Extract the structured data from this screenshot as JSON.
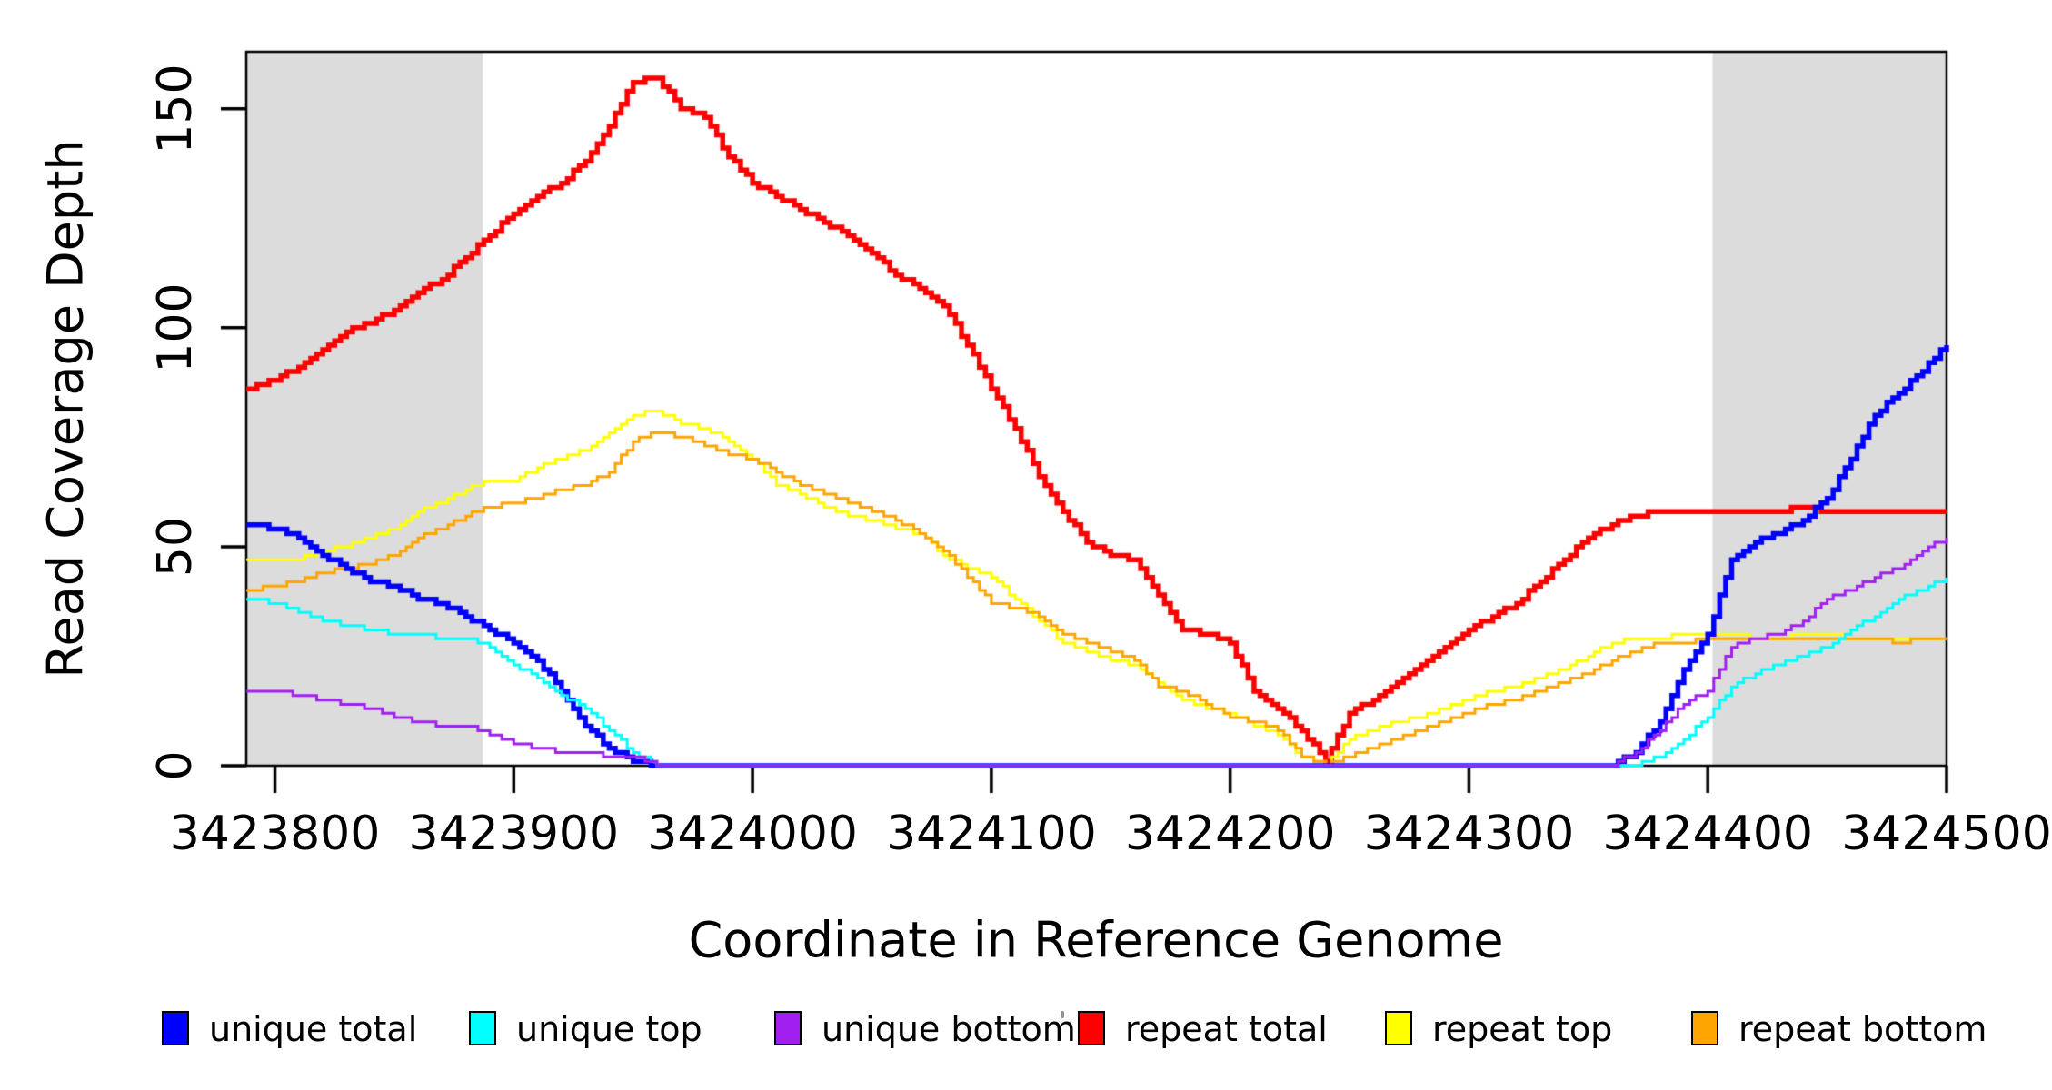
{
  "chart_data": {
    "type": "line",
    "subtype": "step-coverage",
    "title": "",
    "xlabel": "Coordinate in Reference Genome",
    "ylabel": "Read Coverage Depth",
    "xlim": [
      3423788,
      3424500
    ],
    "ylim": [
      0,
      163
    ],
    "grid": false,
    "legend_position": "bottom",
    "background_color": "#ffffff",
    "highlight_color": "#dcdcdc",
    "highlight_regions": [
      {
        "x0": 3423788,
        "x1": 3423887
      },
      {
        "x0": 3424402,
        "x1": 3424500
      }
    ],
    "x_ticks": [
      3423800,
      3423900,
      3424000,
      3424100,
      3424200,
      3424300,
      3424400,
      3424500
    ],
    "x_tick_labels": [
      "3423800",
      "3423900",
      "3424000",
      "3424100",
      "3424200",
      "3424300",
      "3424400",
      "3424500"
    ],
    "y_ticks": [
      0,
      50,
      100,
      150
    ],
    "y_tick_labels": [
      "0",
      "50",
      "100",
      "150"
    ],
    "x_start": 3423790,
    "x_step": 10,
    "x": [
      3423790,
      3423800,
      3423810,
      3423820,
      3423830,
      3423840,
      3423850,
      3423860,
      3423870,
      3423880,
      3423890,
      3423900,
      3423910,
      3423920,
      3423930,
      3423940,
      3423950,
      3423960,
      3423970,
      3423980,
      3423990,
      3424000,
      3424010,
      3424020,
      3424030,
      3424040,
      3424050,
      3424060,
      3424070,
      3424080,
      3424090,
      3424100,
      3424110,
      3424120,
      3424130,
      3424140,
      3424150,
      3424160,
      3424170,
      3424180,
      3424190,
      3424200,
      3424210,
      3424220,
      3424230,
      3424240,
      3424250,
      3424260,
      3424270,
      3424280,
      3424290,
      3424300,
      3424310,
      3424320,
      3424330,
      3424340,
      3424350,
      3424360,
      3424370,
      3424380,
      3424390,
      3424400,
      3424410,
      3424420,
      3424430,
      3424440,
      3424450,
      3424460,
      3424470,
      3424480,
      3424490,
      3424500
    ],
    "series": [
      {
        "name": "repeat total",
        "color": "#ff0000",
        "linewidth": 5.5,
        "values": [
          86,
          88,
          91,
          95,
          99,
          101,
          104,
          108,
          111,
          116,
          121,
          126,
          130,
          133,
          138,
          146,
          156,
          157,
          150,
          148,
          139,
          133,
          130,
          127,
          124,
          121,
          117,
          112,
          109,
          105,
          96,
          86,
          77,
          66,
          58,
          51,
          48,
          47,
          39,
          31,
          30,
          28,
          17,
          13,
          8,
          1,
          12,
          15,
          19,
          23,
          27,
          31,
          34,
          37,
          42,
          47,
          52,
          55,
          57,
          58,
          58,
          58,
          58,
          58,
          58,
          59,
          58,
          58,
          58,
          58,
          58,
          58
        ]
      },
      {
        "name": "repeat top",
        "color": "#ffff00",
        "linewidth": 3,
        "values": [
          47,
          47,
          47,
          49,
          50,
          52,
          54,
          58,
          60,
          63,
          65,
          65,
          68,
          70,
          72,
          76,
          80,
          81,
          78,
          77,
          74,
          70,
          64,
          62,
          59,
          57,
          56,
          54,
          53,
          48,
          45,
          43,
          38,
          33,
          28,
          26,
          24,
          23,
          19,
          15,
          13,
          12,
          9,
          7,
          2,
          0,
          6,
          8,
          10,
          11,
          13,
          15,
          17,
          18,
          20,
          22,
          25,
          28,
          29,
          29,
          30,
          30,
          30,
          29,
          29,
          30,
          30,
          29,
          29,
          29,
          29,
          29
        ]
      },
      {
        "name": "repeat bottom",
        "color": "#ffa500",
        "linewidth": 3,
        "values": [
          40,
          41,
          42,
          44,
          45,
          46,
          48,
          52,
          54,
          57,
          59,
          60,
          61,
          63,
          64,
          67,
          74,
          76,
          75,
          73,
          71,
          70,
          67,
          64,
          62,
          60,
          58,
          56,
          53,
          49,
          43,
          37,
          36,
          34,
          30,
          28,
          26,
          24,
          18,
          17,
          14,
          11,
          10,
          8,
          2,
          0,
          2,
          4,
          6,
          8,
          10,
          12,
          14,
          15,
          17,
          19,
          21,
          24,
          26,
          28,
          28,
          29,
          29,
          29,
          29,
          29,
          29,
          29,
          29,
          28,
          29,
          29
        ]
      },
      {
        "name": "unique total",
        "color": "#0000ff",
        "linewidth": 5.5,
        "values": [
          55,
          54,
          52,
          48,
          45,
          42,
          41,
          38,
          37,
          34,
          31,
          28,
          24,
          17,
          9,
          4,
          1,
          0,
          0,
          0,
          0,
          0,
          0,
          0,
          0,
          0,
          0,
          0,
          0,
          0,
          0,
          0,
          0,
          0,
          0,
          0,
          0,
          0,
          0,
          0,
          0,
          0,
          0,
          0,
          0,
          0,
          0,
          0,
          0,
          0,
          0,
          0,
          0,
          0,
          0,
          0,
          0,
          0,
          3,
          10,
          22,
          30,
          47,
          51,
          53,
          56,
          61,
          70,
          80,
          85,
          90,
          96
        ]
      },
      {
        "name": "unique top",
        "color": "#00ffff",
        "linewidth": 3,
        "values": [
          38,
          37,
          35,
          33,
          32,
          31,
          30,
          30,
          29,
          29,
          27,
          23,
          20,
          16,
          13,
          8,
          3,
          0,
          0,
          0,
          0,
          0,
          0,
          0,
          0,
          0,
          0,
          0,
          0,
          0,
          0,
          0,
          0,
          0,
          0,
          0,
          0,
          0,
          0,
          0,
          0,
          0,
          0,
          0,
          0,
          0,
          0,
          0,
          0,
          0,
          0,
          0,
          0,
          0,
          0,
          0,
          0,
          0,
          0,
          2,
          6,
          11,
          18,
          21,
          23,
          25,
          27,
          31,
          34,
          38,
          40,
          43
        ]
      },
      {
        "name": "unique bottom",
        "color": "#a020f0",
        "linewidth": 3,
        "values": [
          17,
          17,
          16,
          15,
          14,
          13,
          11,
          10,
          9,
          9,
          7,
          5,
          4,
          3,
          3,
          2,
          2,
          0,
          0,
          0,
          0,
          0,
          0,
          0,
          0,
          0,
          0,
          0,
          0,
          0,
          0,
          0,
          0,
          0,
          0,
          0,
          0,
          0,
          0,
          0,
          0,
          0,
          0,
          0,
          0,
          0,
          0,
          0,
          0,
          0,
          0,
          0,
          0,
          0,
          0,
          0,
          0,
          0,
          3,
          8,
          14,
          17,
          27,
          29,
          30,
          33,
          38,
          40,
          43,
          45,
          49,
          52
        ]
      }
    ],
    "legend_order": [
      "unique total",
      "unique top",
      "unique bottom",
      "repeat total",
      "repeat top",
      "repeat bottom"
    ]
  }
}
